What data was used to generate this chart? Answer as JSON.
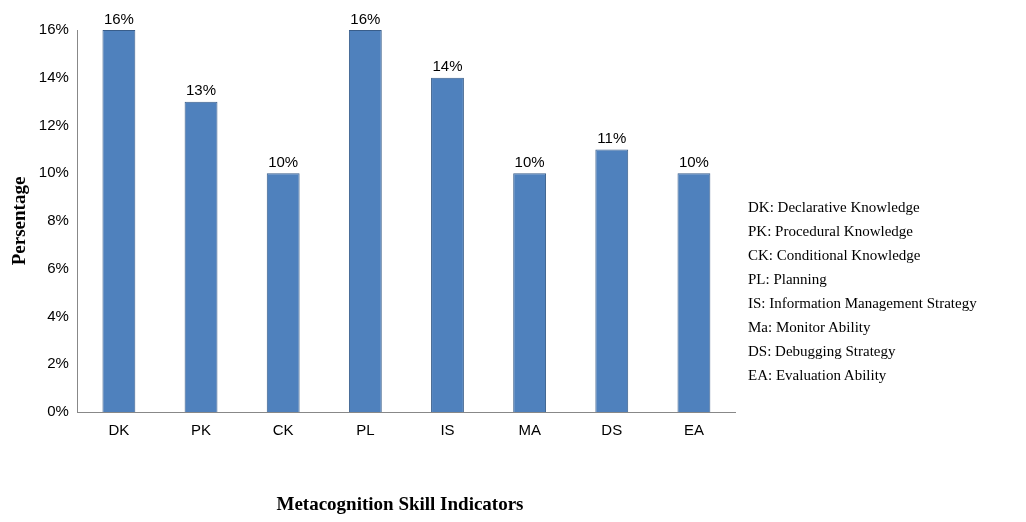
{
  "chart_data": {
    "type": "bar",
    "xlabel": "Metacognition Skill Indicators",
    "ylabel": "Persentage",
    "categories": [
      "DK",
      "PK",
      "CK",
      "PL",
      "IS",
      "MA",
      "DS",
      "EA"
    ],
    "series": [
      {
        "color": "#4f81bd",
        "values": [
          16,
          13,
          10,
          16,
          14,
          10,
          11,
          10
        ]
      }
    ],
    "value_labels": [
      "16%",
      "13%",
      "10%",
      "16%",
      "14%",
      "10%",
      "11%",
      "10%"
    ],
    "ylim": [
      0,
      16
    ],
    "yticks": [
      {
        "value": 0,
        "label": "0%"
      },
      {
        "value": 2,
        "label": "2%"
      },
      {
        "value": 4,
        "label": "4%"
      },
      {
        "value": 6,
        "label": "6%"
      },
      {
        "value": 8,
        "label": "8%"
      },
      {
        "value": 10,
        "label": "10%"
      },
      {
        "value": 12,
        "label": "12%"
      },
      {
        "value": 14,
        "label": "14%"
      },
      {
        "value": 16,
        "label": "16%"
      }
    ],
    "grid": false,
    "legend": false,
    "annotations": [
      "DK: Declarative Knowledge",
      "PK: Procedural Knowledge",
      "CK: Conditional Knowledge",
      "PL: Planning",
      "IS: Information Management Strategy",
      "Ma: Monitor Ability",
      "DS: Debugging Strategy",
      "EA: Evaluation Ability"
    ]
  }
}
